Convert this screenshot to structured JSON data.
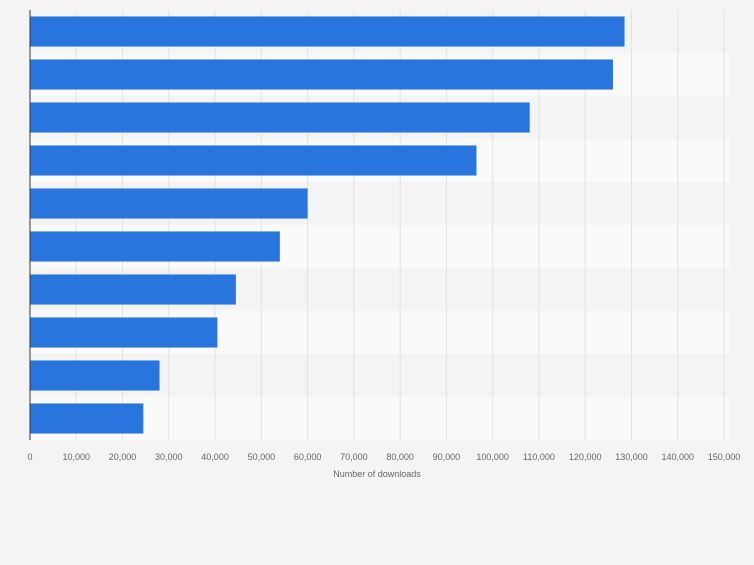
{
  "chart_data": {
    "type": "bar",
    "orientation": "horizontal",
    "title": "",
    "xlabel": "Number of downloads",
    "ylabel": "",
    "xlim": [
      0,
      150000
    ],
    "x_ticks": [
      0,
      10000,
      20000,
      30000,
      40000,
      50000,
      60000,
      70000,
      80000,
      90000,
      100000,
      110000,
      120000,
      130000,
      140000,
      150000
    ],
    "x_tick_labels": [
      "0",
      "10,000",
      "20,000",
      "30,000",
      "40,000",
      "50,000",
      "60,000",
      "70,000",
      "80,000",
      "90,000",
      "100,000",
      "110,000",
      "120,000",
      "130,000",
      "140,000",
      "150,000"
    ],
    "categories": [
      "",
      "",
      "",
      "",
      "",
      "",
      "",
      "",
      "",
      ""
    ],
    "values": [
      128500,
      126000,
      108000,
      96500,
      60000,
      54000,
      44500,
      40500,
      28000,
      24500
    ],
    "grid": true,
    "bar_color": "#2876dd",
    "band_colors": [
      "#f4f4f4",
      "#fafafa"
    ],
    "legend": "none"
  }
}
